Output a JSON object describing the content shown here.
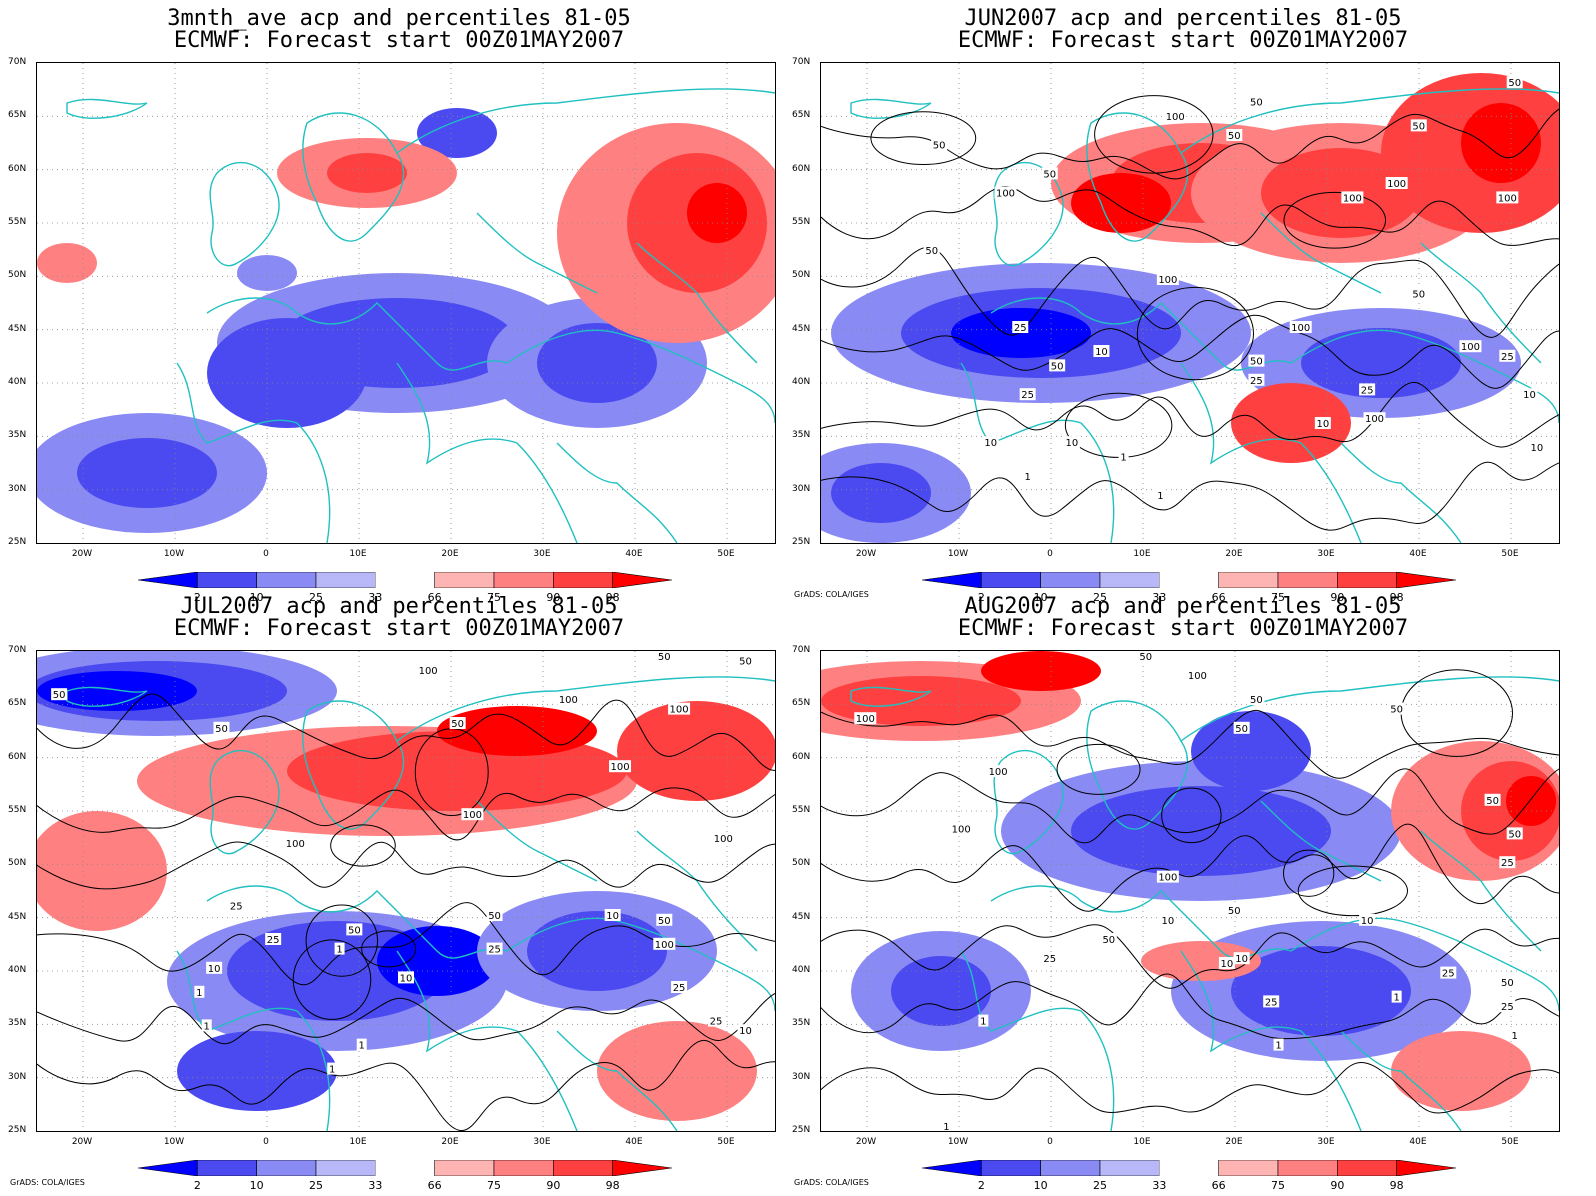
{
  "panels": [
    {
      "title1": "3mnth_ave acp and percentiles 81-05",
      "title2": "ECMWF: Forecast start 00Z01MAY2007",
      "credit": "",
      "contours": []
    },
    {
      "title1": "JUN2007 acp and percentiles 81-05",
      "title2": "ECMWF: Forecast start 00Z01MAY2007",
      "credit": "GrADS: COLA/IGES",
      "contours": [
        "50",
        "100",
        "50",
        "50",
        "100",
        "50",
        "50",
        "100",
        "100",
        "100",
        "100",
        "100",
        "50",
        "50",
        "25",
        "10",
        "50",
        "25",
        "100",
        "50",
        "25",
        "10",
        "10",
        "10",
        "1",
        "1",
        "1",
        "50",
        "100",
        "25",
        "10",
        "10",
        "25"
      ]
    },
    {
      "title1": "JUL2007 acp and percentiles 81-05",
      "title2": "ECMWF: Forecast start 00Z01MAY2007",
      "credit": "GrADS: COLA/IGES",
      "contours": [
        "50",
        "50",
        "100",
        "50",
        "100",
        "100",
        "100",
        "100",
        "50",
        "100",
        "50",
        "100",
        "25",
        "25",
        "1",
        "10",
        "10",
        "1",
        "1",
        "50",
        "25",
        "10",
        "50",
        "100",
        "25",
        "25",
        "10",
        "1",
        "1",
        "50"
      ]
    },
    {
      "title1": "AUG2007 acp and percentiles 81-05",
      "title2": "ECMWF: Forecast start 00Z01MAY2007",
      "credit": "GrADS: COLA/IGES",
      "contours": [
        "50",
        "100",
        "100",
        "50",
        "50",
        "50",
        "100",
        "100",
        "100",
        "50",
        "50",
        "25",
        "10",
        "25",
        "10",
        "50",
        "10",
        "25",
        "1",
        "1",
        "1",
        "50",
        "25",
        "10",
        "50",
        "25",
        "1",
        "1"
      ]
    }
  ],
  "axes": {
    "lat_labels": [
      "70N",
      "65N",
      "60N",
      "55N",
      "50N",
      "45N",
      "40N",
      "35N",
      "30N",
      "25N"
    ],
    "lon_labels": [
      "20W",
      "10W",
      "0",
      "10E",
      "20E",
      "30E",
      "40E",
      "50E"
    ]
  },
  "colorbar": {
    "labels": [
      "2",
      "10",
      "25",
      "33",
      "66",
      "75",
      "90",
      "98"
    ],
    "colors": [
      "#0000ff",
      "#4a4af0",
      "#8a8af5",
      "#b8b8f8",
      "#ffffff",
      "#ffb4b4",
      "#ff8080",
      "#ff4040",
      "#ff0000"
    ]
  }
}
